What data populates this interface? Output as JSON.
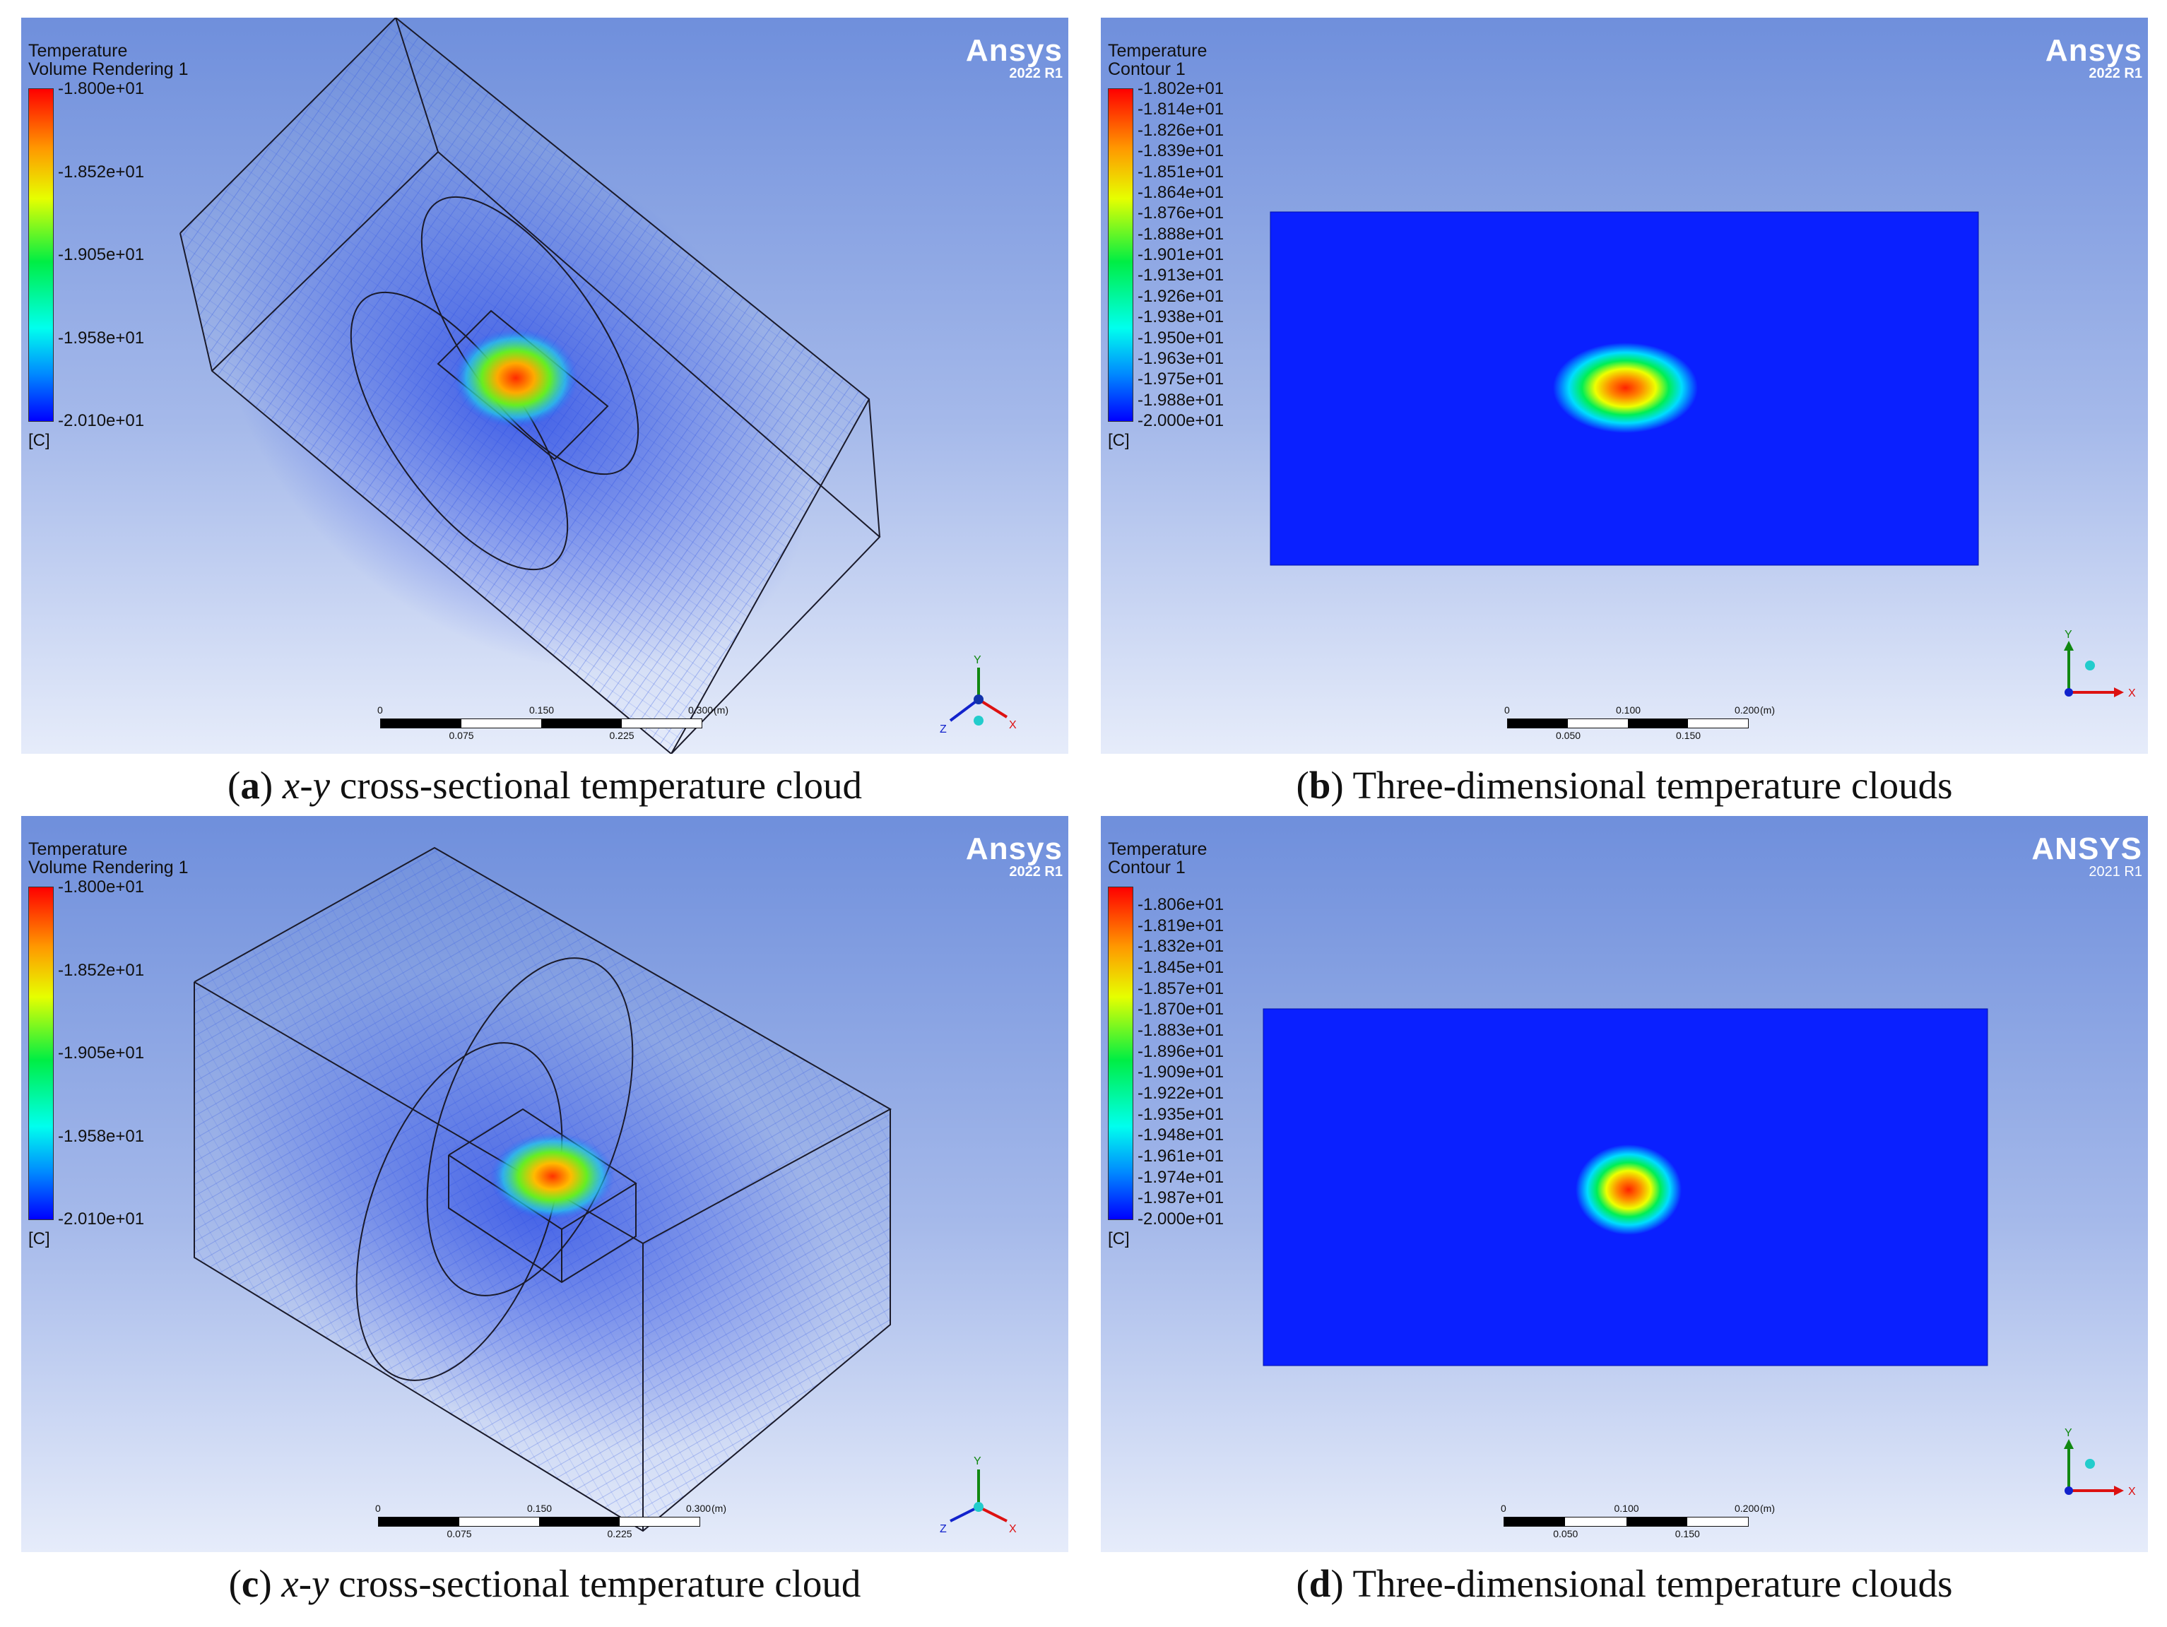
{
  "panels": [
    {
      "id": "a",
      "header": [
        "Temperature",
        "Volume Rendering 1"
      ],
      "brand": {
        "name": "Ansys",
        "version": "2022 R1"
      },
      "colorbar": {
        "labels": [
          "-1.800e+01",
          "-1.852e+01",
          "-1.905e+01",
          "-1.958e+01",
          "-2.010e+01"
        ],
        "unit": "[C]"
      },
      "scale": {
        "top": [
          "0",
          "0.150",
          "0.300",
          "(m)"
        ],
        "bottom": [
          "0.075",
          "0.225"
        ]
      },
      "axes": {
        "x": "X",
        "y": "Y",
        "z": "Z"
      },
      "caption": {
        "letter": "a",
        "var": "x-y",
        "text": " cross-sectional temperature cloud"
      }
    },
    {
      "id": "b",
      "header": [
        "Temperature",
        "Contour 1"
      ],
      "brand": {
        "name": "Ansys",
        "version": "2022 R1"
      },
      "colorbar": {
        "labels": [
          "-1.802e+01",
          "-1.814e+01",
          "-1.826e+01",
          "-1.839e+01",
          "-1.851e+01",
          "-1.864e+01",
          "-1.876e+01",
          "-1.888e+01",
          "-1.901e+01",
          "-1.913e+01",
          "-1.926e+01",
          "-1.938e+01",
          "-1.950e+01",
          "-1.963e+01",
          "-1.975e+01",
          "-1.988e+01",
          "-2.000e+01"
        ],
        "unit": "[C]"
      },
      "scale": {
        "top": [
          "0",
          "0.100",
          "0.200",
          "(m)"
        ],
        "bottom": [
          "0.050",
          "0.150"
        ]
      },
      "axes": {
        "x": "X",
        "y": "Y"
      },
      "caption": {
        "letter": "b",
        "var": "",
        "text": " Three-dimensional temperature clouds"
      }
    },
    {
      "id": "c",
      "header": [
        "Temperature",
        "Volume Rendering 1"
      ],
      "brand": {
        "name": "Ansys",
        "version": "2022 R1"
      },
      "colorbar": {
        "labels": [
          "-1.800e+01",
          "-1.852e+01",
          "-1.905e+01",
          "-1.958e+01",
          "-2.010e+01"
        ],
        "unit": "[C]"
      },
      "scale": {
        "top": [
          "0",
          "0.150",
          "0.300",
          "(m)"
        ],
        "bottom": [
          "0.075",
          "0.225"
        ]
      },
      "axes": {
        "x": "X",
        "y": "Y",
        "z": "Z"
      },
      "caption": {
        "letter": "c",
        "var": "x-y",
        "text": " cross-sectional temperature cloud"
      }
    },
    {
      "id": "d",
      "header": [
        "Temperature",
        "Contour 1"
      ],
      "brand": {
        "name": "ANSYS",
        "version": "2021 R1"
      },
      "colorbar": {
        "labels": [
          "-1.806e+01",
          "-1.819e+01",
          "-1.832e+01",
          "-1.845e+01",
          "-1.857e+01",
          "-1.870e+01",
          "-1.883e+01",
          "-1.896e+01",
          "-1.909e+01",
          "-1.922e+01",
          "-1.935e+01",
          "-1.948e+01",
          "-1.961e+01",
          "-1.974e+01",
          "-1.987e+01",
          "-2.000e+01"
        ],
        "unit": "[C]"
      },
      "scale": {
        "top": [
          "0",
          "0.100",
          "0.200",
          "(m)"
        ],
        "bottom": [
          "0.050",
          "0.150"
        ]
      },
      "axes": {
        "x": "X",
        "y": "Y"
      },
      "caption": {
        "letter": "d",
        "var": "",
        "text": " Three-dimensional temperature clouds"
      }
    }
  ]
}
